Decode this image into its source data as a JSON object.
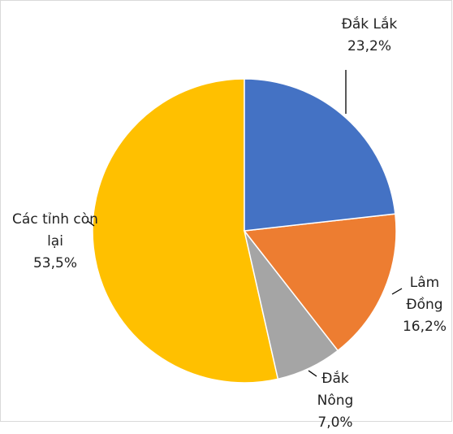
{
  "chart_data": {
    "type": "pie",
    "categories": [
      "Đắk Lắk",
      "Lâm Đồng",
      "Đắk Nông",
      "Các tỉnh còn lại"
    ],
    "values": [
      23.2,
      16.2,
      7.0,
      53.5
    ],
    "value_labels": [
      "23,2%",
      "16,2%",
      "7,0%",
      "53,5%"
    ],
    "colors": [
      "#4472c4",
      "#ed7d31",
      "#a5a5a5",
      "#ffc000"
    ]
  }
}
